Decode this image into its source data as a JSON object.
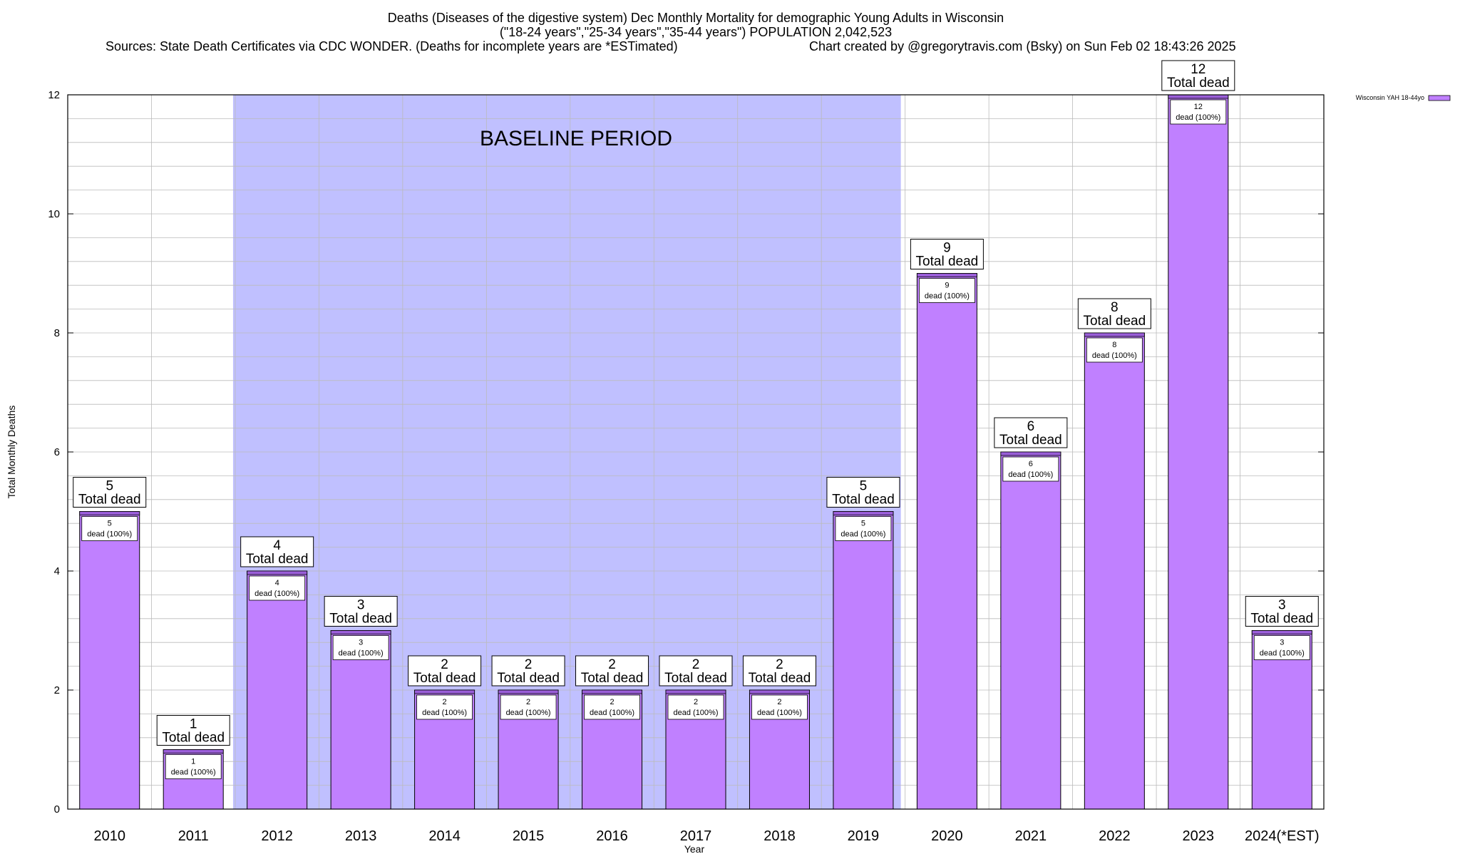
{
  "chart_data": {
    "type": "bar",
    "title_lines": [
      "Deaths (Diseases of the digestive system) Dec Monthly Mortality for demographic Young Adults in Wisconsin",
      "(\"18-24 years\",\"25-34 years\",\"35-44 years\") POPULATION 2,042,523"
    ],
    "sources_text": "Sources: State Death Certificates via CDC WONDER. (Deaths for incomplete years are *ESTimated)",
    "credit_text": "Chart created by @gregorytravis.com (Bsky) on Sun Feb 02 18:43:26 2025",
    "xlabel": "Year",
    "ylabel": "Total Monthly Deaths",
    "ylim": [
      0,
      12
    ],
    "y_ticks": [
      0,
      2,
      4,
      6,
      8,
      10,
      12
    ],
    "grid": true,
    "categories": [
      "2010",
      "2011",
      "2012",
      "2013",
      "2014",
      "2015",
      "2016",
      "2017",
      "2018",
      "2019",
      "2020",
      "2021",
      "2022",
      "2023",
      "2024(*EST)"
    ],
    "series": [
      {
        "name": "Wisconsin YAH 18-44yo",
        "values": [
          5,
          1,
          4,
          3,
          2,
          2,
          2,
          2,
          2,
          5,
          9,
          6,
          8,
          12,
          3
        ]
      }
    ],
    "top_label_suffix": "Total dead",
    "inner_label_suffix": "dead (100%)",
    "baseline": {
      "label": "BASELINE PERIOD",
      "from": "2012",
      "to": "2019"
    },
    "legend_placement": "top-right",
    "colors": {
      "bar": "#c080ff",
      "bar_top": "#9a5ed8",
      "baseline": "#c0c0ff",
      "grid": "#bbbbbb"
    }
  }
}
